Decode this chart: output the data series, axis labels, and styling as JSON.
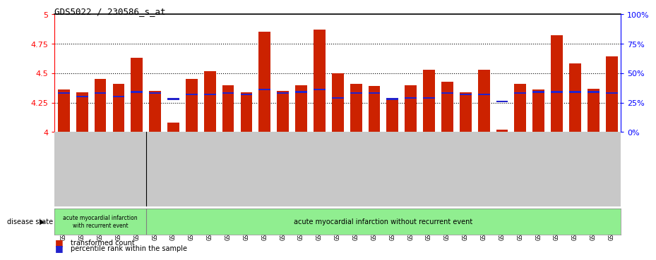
{
  "title": "GDS5022 / 230586_s_at",
  "samples": [
    "GSM1167072",
    "GSM1167078",
    "GSM1167081",
    "GSM1167088",
    "GSM1167097",
    "GSM1167073",
    "GSM1167074",
    "GSM1167075",
    "GSM1167076",
    "GSM1167077",
    "GSM1167079",
    "GSM1167080",
    "GSM1167082",
    "GSM1167083",
    "GSM1167084",
    "GSM1167085",
    "GSM1167086",
    "GSM1167087",
    "GSM1167089",
    "GSM1167090",
    "GSM1167091",
    "GSM1167092",
    "GSM1167093",
    "GSM1167094",
    "GSM1167095",
    "GSM1167096",
    "GSM1167098",
    "GSM1167099",
    "GSM1167100",
    "GSM1167101",
    "GSM1167122"
  ],
  "red_values": [
    4.36,
    4.34,
    4.45,
    4.41,
    4.63,
    4.35,
    4.08,
    4.45,
    4.52,
    4.4,
    4.34,
    4.85,
    4.35,
    4.4,
    4.87,
    4.5,
    4.41,
    4.39,
    4.29,
    4.4,
    4.53,
    4.43,
    4.34,
    4.53,
    4.02,
    4.41,
    4.36,
    4.82,
    4.58,
    4.37,
    4.64
  ],
  "blue_values": [
    4.33,
    4.3,
    4.33,
    4.3,
    4.34,
    4.33,
    4.28,
    4.32,
    4.32,
    4.33,
    4.32,
    4.36,
    4.33,
    4.34,
    4.36,
    4.29,
    4.33,
    4.33,
    4.28,
    4.29,
    4.29,
    4.33,
    4.32,
    4.32,
    4.26,
    4.33,
    4.34,
    4.34,
    4.34,
    4.34,
    4.33
  ],
  "group1_count": 5,
  "group1_label": "acute myocardial infarction\nwith recurrent event",
  "group2_label": "acute myocardial infarction without recurrent event",
  "disease_state_label": "disease state",
  "ymin": 4.0,
  "ymax": 5.0,
  "yticks": [
    4.0,
    4.25,
    4.5,
    4.75,
    5.0
  ],
  "right_yticks": [
    0,
    25,
    50,
    75,
    100
  ],
  "bar_color": "#CC2200",
  "blue_color": "#2222CC",
  "gray_bg": "#C8C8C8",
  "plot_bg": "#FFFFFF",
  "green_bg": "#90EE90",
  "legend_red": "transformed count",
  "legend_blue": "percentile rank within the sample"
}
